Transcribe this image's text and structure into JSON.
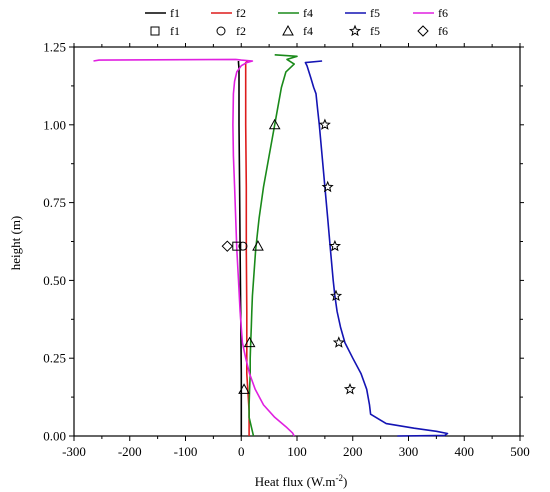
{
  "chart_data": {
    "type": "line",
    "xlabel": "Heat flux (W.m",
    "xlabel_sup": "-2",
    "xlabel_close": ")",
    "ylabel": "height (m)",
    "xlim": [
      -300,
      500
    ],
    "ylim": [
      0,
      1.25
    ],
    "xticks": [
      "-300",
      "-200",
      "-100",
      "0",
      "100",
      "200",
      "300",
      "400",
      "500"
    ],
    "yticks": [
      "0.00",
      "0.25",
      "0.50",
      "0.75",
      "1.00",
      "1.25"
    ],
    "legend_placement": "top",
    "colors": {
      "f1": "#000000",
      "f2": "#dd1c1c",
      "f4": "#1a8a1a",
      "f5": "#1414b4",
      "f6": "#e020e0"
    },
    "series": [
      {
        "name": "f1",
        "color": "#000000",
        "points": [
          [
            -5,
            1.205
          ],
          [
            -5,
            1.2
          ],
          [
            -4,
            1.18
          ],
          [
            -4,
            1.0
          ],
          [
            -3,
            0.8
          ],
          [
            -2,
            0.6
          ],
          [
            -1,
            0.4
          ],
          [
            0,
            0.2
          ],
          [
            0,
            0.05
          ],
          [
            0,
            0.0
          ]
        ]
      },
      {
        "name": "f2",
        "color": "#dd1c1c",
        "points": [
          [
            12,
            1.205
          ],
          [
            8,
            1.2
          ],
          [
            8,
            1.18
          ],
          [
            8,
            1.0
          ],
          [
            9,
            0.8
          ],
          [
            9,
            0.6
          ],
          [
            10,
            0.4
          ],
          [
            10,
            0.2
          ],
          [
            14,
            0.08
          ],
          [
            14,
            0.0
          ]
        ]
      },
      {
        "name": "f4",
        "color": "#1a8a1a",
        "points": [
          [
            60,
            1.225
          ],
          [
            100,
            1.22
          ],
          [
            82,
            1.21
          ],
          [
            95,
            1.195
          ],
          [
            80,
            1.17
          ],
          [
            72,
            1.12
          ],
          [
            65,
            1.05
          ],
          [
            60,
            1.0
          ],
          [
            55,
            0.95
          ],
          [
            50,
            0.9
          ],
          [
            45,
            0.85
          ],
          [
            40,
            0.8
          ],
          [
            36,
            0.75
          ],
          [
            32,
            0.7
          ],
          [
            29,
            0.65
          ],
          [
            26,
            0.6
          ],
          [
            24,
            0.55
          ],
          [
            22,
            0.5
          ],
          [
            20,
            0.45
          ],
          [
            19,
            0.4
          ],
          [
            18,
            0.35
          ],
          [
            17,
            0.3
          ],
          [
            16,
            0.25
          ],
          [
            16,
            0.2
          ],
          [
            15,
            0.15
          ],
          [
            14,
            0.1
          ],
          [
            14,
            0.06
          ],
          [
            18,
            0.03
          ],
          [
            22,
            0.0
          ]
        ]
      },
      {
        "name": "f5",
        "color": "#1414b4",
        "points": [
          [
            145,
            1.205
          ],
          [
            115,
            1.2
          ],
          [
            118,
            1.19
          ],
          [
            125,
            1.15
          ],
          [
            130,
            1.12
          ],
          [
            134,
            1.1
          ],
          [
            137,
            1.05
          ],
          [
            140,
            1.0
          ],
          [
            145,
            0.9
          ],
          [
            150,
            0.8
          ],
          [
            155,
            0.7
          ],
          [
            160,
            0.6
          ],
          [
            165,
            0.5
          ],
          [
            168,
            0.45
          ],
          [
            172,
            0.4
          ],
          [
            178,
            0.35
          ],
          [
            186,
            0.3
          ],
          [
            200,
            0.25
          ],
          [
            215,
            0.2
          ],
          [
            225,
            0.15
          ],
          [
            230,
            0.1
          ],
          [
            232,
            0.07
          ],
          [
            260,
            0.04
          ],
          [
            310,
            0.025
          ],
          [
            350,
            0.015
          ],
          [
            370,
            0.008
          ],
          [
            365,
            0.002
          ],
          [
            280,
            0.0
          ]
        ]
      },
      {
        "name": "f6",
        "color": "#e020e0",
        "points": [
          [
            -265,
            1.205
          ],
          [
            -255,
            1.208
          ],
          [
            -10,
            1.21
          ],
          [
            0,
            1.208
          ],
          [
            20,
            1.205
          ],
          [
            10,
            1.2
          ],
          [
            0,
            1.19
          ],
          [
            -8,
            1.17
          ],
          [
            -12,
            1.14
          ],
          [
            -14,
            1.1
          ],
          [
            -15,
            1.0
          ],
          [
            -14,
            0.9
          ],
          [
            -12,
            0.8
          ],
          [
            -10,
            0.7
          ],
          [
            -8,
            0.6
          ],
          [
            -5,
            0.5
          ],
          [
            -2,
            0.4
          ],
          [
            2,
            0.3
          ],
          [
            8,
            0.25
          ],
          [
            15,
            0.2
          ],
          [
            25,
            0.15
          ],
          [
            40,
            0.1
          ],
          [
            60,
            0.06
          ],
          [
            80,
            0.03
          ],
          [
            92,
            0.01
          ],
          [
            95,
            0.0
          ]
        ]
      }
    ],
    "markers": [
      {
        "name": "f1",
        "shape": "square",
        "points": [
          [
            -8,
            0.61
          ]
        ]
      },
      {
        "name": "f2",
        "shape": "circle",
        "points": [
          [
            3,
            0.61
          ]
        ]
      },
      {
        "name": "f4",
        "shape": "triangle",
        "points": [
          [
            60,
            1.0
          ],
          [
            30,
            0.61
          ],
          [
            15,
            0.3
          ],
          [
            5,
            0.15
          ]
        ]
      },
      {
        "name": "f5",
        "shape": "star",
        "points": [
          [
            150,
            1.0
          ],
          [
            155,
            0.8
          ],
          [
            168,
            0.61
          ],
          [
            170,
            0.45
          ],
          [
            175,
            0.3
          ],
          [
            195,
            0.15
          ]
        ]
      },
      {
        "name": "f6",
        "shape": "diamond",
        "points": [
          [
            -25,
            0.61
          ]
        ]
      }
    ]
  }
}
